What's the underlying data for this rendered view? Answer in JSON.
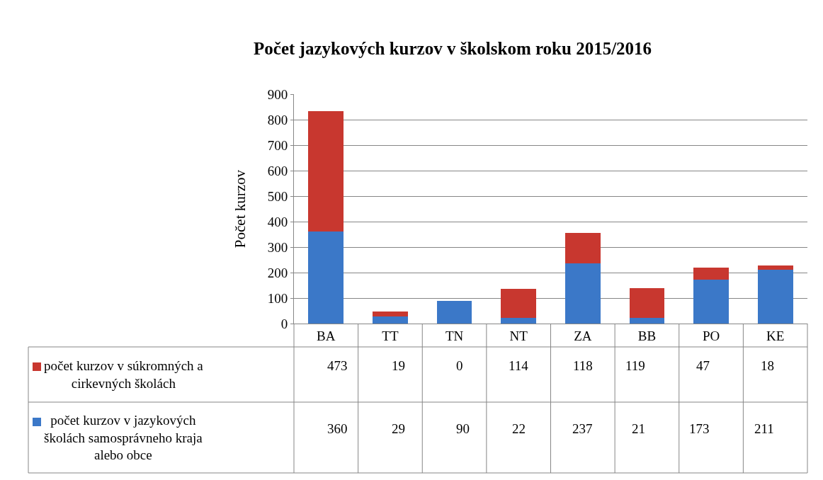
{
  "chart_data": {
    "type": "bar",
    "stacked": true,
    "title": "Počet jazykových kurzov v školskom roku 2015/2016",
    "ylabel": "Počet kurzov",
    "categories": [
      "BA",
      "TT",
      "TN",
      "NT",
      "ZA",
      "BB",
      "PO",
      "KE"
    ],
    "series": [
      {
        "name": "počet kurzov v jazykových školách samosprávneho kraja alebo obce",
        "color": "#3b78c8",
        "values": [
          360,
          29,
          90,
          22,
          237,
          21,
          173,
          211
        ]
      },
      {
        "name": "počet kurzov v súkromných a cirkevných školách",
        "color": "#c8372f",
        "values": [
          473,
          19,
          0,
          114,
          118,
          119,
          47,
          18
        ]
      }
    ],
    "ylim": [
      0,
      900
    ],
    "yticks": [
      0,
      100,
      200,
      300,
      400,
      500,
      600,
      700,
      800,
      900
    ],
    "grid": "y",
    "legend": "bottom left",
    "data_labels": true
  }
}
